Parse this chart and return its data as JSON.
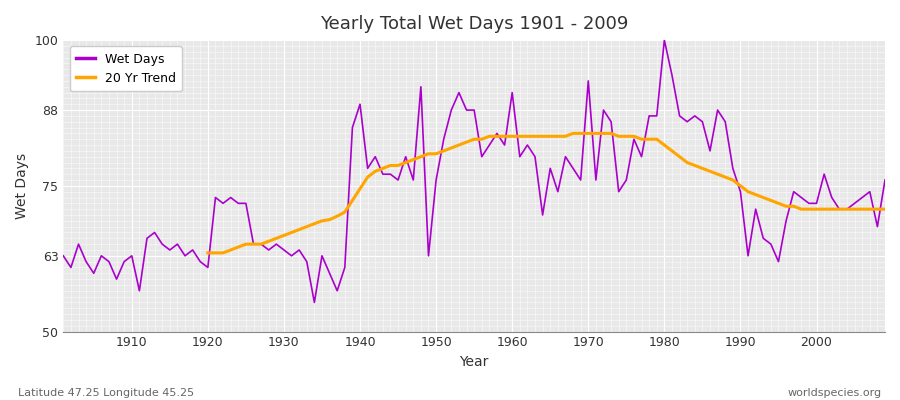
{
  "title": "Yearly Total Wet Days 1901 - 2009",
  "xlabel": "Year",
  "ylabel": "Wet Days",
  "xlim": [
    1901,
    2009
  ],
  "ylim": [
    50,
    100
  ],
  "yticks": [
    50,
    63,
    75,
    88,
    100
  ],
  "xticks": [
    1910,
    1920,
    1930,
    1940,
    1950,
    1960,
    1970,
    1980,
    1990,
    2000
  ],
  "bg_color": "#e8e8e8",
  "fig_color": "#ffffff",
  "line_color_wet": "#aa00cc",
  "line_color_trend": "#FFA500",
  "legend_labels": [
    "Wet Days",
    "20 Yr Trend"
  ],
  "bottom_left_text": "Latitude 47.25 Longitude 45.25",
  "bottom_right_text": "worldspecies.org",
  "years": [
    1901,
    1902,
    1903,
    1904,
    1905,
    1906,
    1907,
    1908,
    1909,
    1910,
    1911,
    1912,
    1913,
    1914,
    1915,
    1916,
    1917,
    1918,
    1919,
    1920,
    1921,
    1922,
    1923,
    1924,
    1925,
    1926,
    1927,
    1928,
    1929,
    1930,
    1931,
    1932,
    1933,
    1934,
    1935,
    1936,
    1937,
    1938,
    1939,
    1940,
    1941,
    1942,
    1943,
    1944,
    1945,
    1946,
    1947,
    1948,
    1949,
    1950,
    1951,
    1952,
    1953,
    1954,
    1955,
    1956,
    1957,
    1958,
    1959,
    1960,
    1961,
    1962,
    1963,
    1964,
    1965,
    1966,
    1967,
    1968,
    1969,
    1970,
    1971,
    1972,
    1973,
    1974,
    1975,
    1976,
    1977,
    1978,
    1979,
    1980,
    1981,
    1982,
    1983,
    1984,
    1985,
    1986,
    1987,
    1988,
    1989,
    1990,
    1991,
    1992,
    1993,
    1994,
    1995,
    1996,
    1997,
    1998,
    1999,
    2000,
    2001,
    2002,
    2003,
    2004,
    2005,
    2006,
    2007,
    2008,
    2009
  ],
  "wet_days": [
    63,
    61,
    65,
    62,
    60,
    63,
    62,
    59,
    62,
    63,
    57,
    66,
    67,
    65,
    64,
    65,
    63,
    64,
    62,
    61,
    73,
    72,
    73,
    72,
    72,
    65,
    65,
    64,
    65,
    64,
    63,
    64,
    62,
    55,
    63,
    60,
    57,
    61,
    85,
    89,
    78,
    80,
    77,
    77,
    76,
    80,
    76,
    92,
    63,
    76,
    83,
    88,
    91,
    88,
    88,
    80,
    82,
    84,
    82,
    91,
    80,
    82,
    80,
    70,
    78,
    74,
    80,
    78,
    76,
    93,
    76,
    88,
    86,
    74,
    76,
    83,
    80,
    87,
    87,
    100,
    94,
    87,
    86,
    87,
    86,
    81,
    88,
    86,
    78,
    74,
    63,
    71,
    66,
    65,
    62,
    69,
    74,
    73,
    72,
    72,
    77,
    73,
    71,
    71,
    72,
    73,
    74,
    68,
    76
  ],
  "trend": [
    null,
    null,
    null,
    null,
    null,
    null,
    null,
    null,
    null,
    null,
    null,
    null,
    null,
    null,
    null,
    null,
    null,
    null,
    null,
    63.5,
    63.5,
    63.5,
    64,
    64.5,
    65,
    65,
    65,
    65.5,
    66,
    66.5,
    67,
    67.5,
    68,
    68.5,
    69,
    69.2,
    69.8,
    70.5,
    72.5,
    74.5,
    76.5,
    77.5,
    78,
    78.5,
    78.5,
    79,
    79.5,
    80,
    80.5,
    80.5,
    81,
    81.5,
    82,
    82.5,
    83,
    83,
    83.5,
    83.5,
    83.5,
    83.5,
    83.5,
    83.5,
    83.5,
    83.5,
    83.5,
    83.5,
    83.5,
    84,
    84,
    84,
    84,
    84,
    84,
    83.5,
    83.5,
    83.5,
    83,
    83,
    83,
    82,
    81,
    80,
    79,
    78.5,
    78,
    77.5,
    77,
    76.5,
    76,
    75,
    74,
    73.5,
    73,
    72.5,
    72,
    71.5,
    71.5,
    71,
    71,
    71,
    71,
    71,
    71,
    71,
    71,
    71,
    71,
    71,
    71
  ]
}
